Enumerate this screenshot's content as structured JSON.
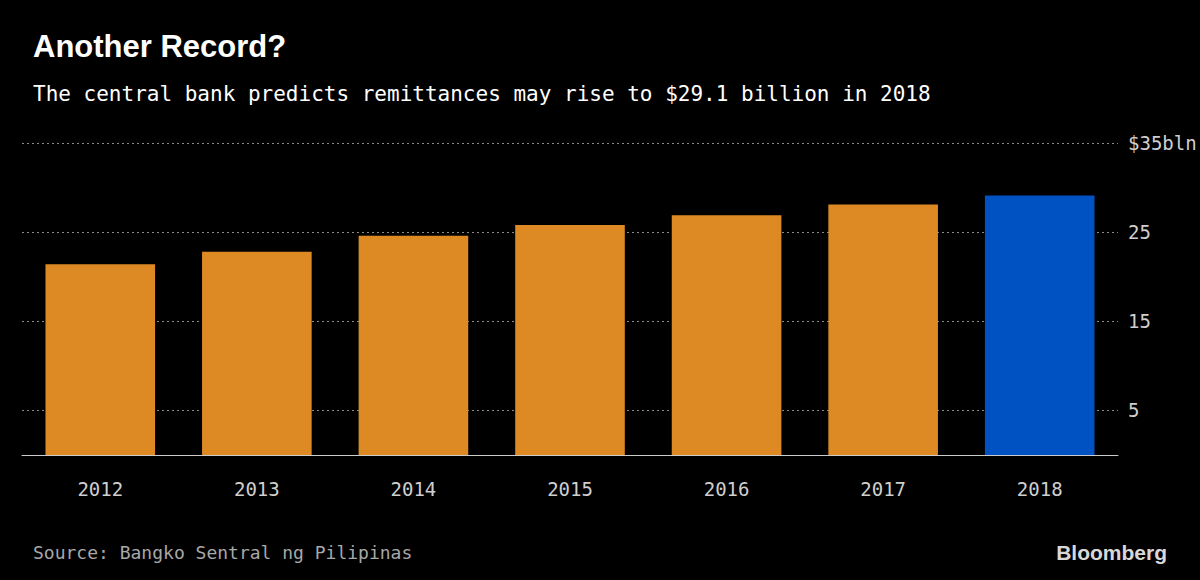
{
  "chart_data": {
    "type": "bar",
    "title": "Another Record?",
    "subtitle": "The central bank predicts remittances may rise to $29.1 billion in 2018",
    "source": "Source: Bangko Sentral ng Pilipinas",
    "credit": "Bloomberg",
    "categories": [
      "2012",
      "2013",
      "2014",
      "2015",
      "2016",
      "2017",
      "2018"
    ],
    "values": [
      21.4,
      22.8,
      24.6,
      25.8,
      26.9,
      28.1,
      29.1
    ],
    "colors": [
      "#de8a24",
      "#de8a24",
      "#de8a24",
      "#de8a24",
      "#de8a24",
      "#de8a24",
      "#0051c1"
    ],
    "ylim": [
      0,
      35
    ],
    "yticks": [
      5,
      15,
      25,
      {
        "value": 35,
        "label": "$35bln"
      }
    ],
    "grid": true
  }
}
